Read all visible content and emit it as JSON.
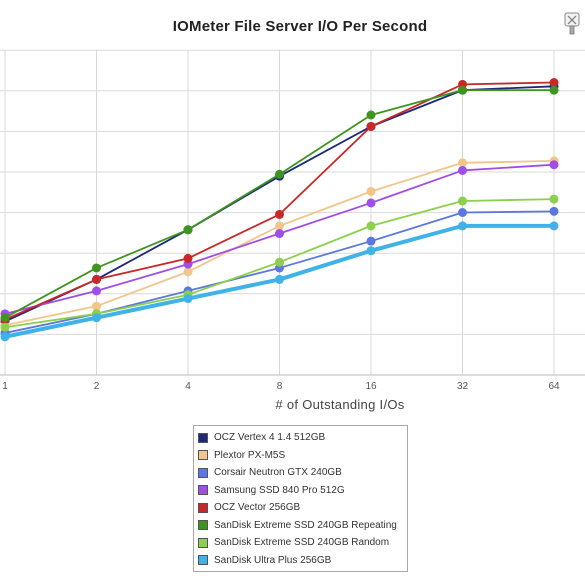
{
  "chart_data": {
    "type": "line",
    "title": "IOMeter File Server I/O Per Second",
    "xlabel": "# of Outstanding I/Os",
    "ylabel": "",
    "categories": [
      "1",
      "2",
      "4",
      "8",
      "16",
      "32",
      "64"
    ],
    "grid": true,
    "legend_position": "bottom-center",
    "series": [
      {
        "name": "OCZ Vertex 4 1.4 512GB",
        "color": "#1c2a78",
        "values": [
          0.9,
          2.0,
          3.3,
          4.7,
          6.0,
          6.95,
          7.05
        ]
      },
      {
        "name": "Plextor PX-M5S",
        "color": "#f2c58b",
        "values": [
          0.8,
          1.3,
          2.2,
          3.4,
          4.3,
          5.05,
          5.1
        ]
      },
      {
        "name": "Corsair Neutron GTX 240GB",
        "color": "#5d77e0",
        "values": [
          0.6,
          1.1,
          1.7,
          2.3,
          3.0,
          3.75,
          3.78
        ]
      },
      {
        "name": "Samsung SSD 840 Pro 512G",
        "color": "#a04ee8",
        "values": [
          1.1,
          1.7,
          2.4,
          3.2,
          4.0,
          4.85,
          5.0
        ]
      },
      {
        "name": "OCZ Vector 256GB",
        "color": "#c82828",
        "values": [
          0.95,
          2.0,
          2.55,
          3.7,
          6.0,
          7.1,
          7.15
        ]
      },
      {
        "name": "SanDisk Extreme SSD 240GB Repeating",
        "color": "#3f9420",
        "values": [
          1.0,
          2.3,
          3.3,
          4.75,
          6.3,
          6.95,
          6.95
        ]
      },
      {
        "name": "SanDisk Extreme SSD 240GB Random",
        "color": "#8cd04b",
        "values": [
          0.75,
          1.1,
          1.6,
          2.45,
          3.4,
          4.05,
          4.1
        ]
      },
      {
        "name": "SanDisk Ultra Plus 256GB",
        "color": "#3fb3e8",
        "values": [
          0.5,
          1.0,
          1.5,
          2.0,
          2.75,
          3.4,
          3.4
        ]
      }
    ],
    "ylim": [
      -0.5,
      8.0
    ]
  },
  "icons": {
    "corner": "wrench-badge-icon"
  }
}
